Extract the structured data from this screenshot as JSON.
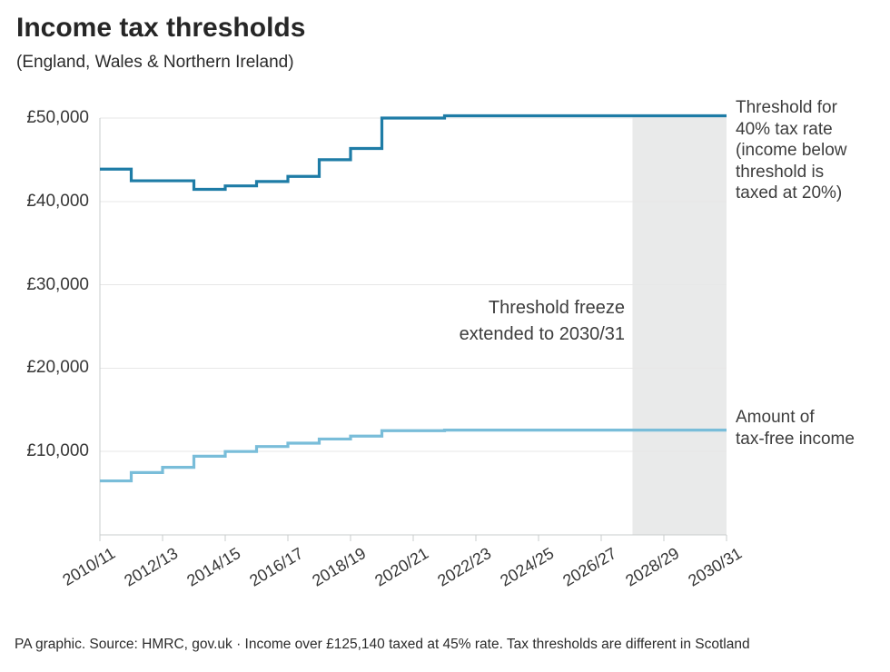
{
  "header": {
    "title": "Income tax thresholds",
    "subtitle": "(England, Wales & Northern Ireland)"
  },
  "right_labels": {
    "threshold_40": "Threshold for\n40% tax rate\n(income below\nthreshold is\ntaxed at 20%)",
    "tax_free": "Amount of\ntax-free income"
  },
  "footer": {
    "text": "PA graphic. Source: HMRC, gov.uk · Income over £125,140 taxed at 45% rate. Tax thresholds are different in Scotland"
  },
  "chart_data": {
    "type": "line",
    "step": true,
    "title": "Income tax thresholds",
    "subtitle": "(England, Wales & Northern Ireland)",
    "grid": "horizontal",
    "legend_position": "right-margin",
    "x_categories": [
      "2010/11",
      "2011/12",
      "2012/13",
      "2013/14",
      "2014/15",
      "2015/16",
      "2016/17",
      "2017/18",
      "2018/19",
      "2019/20",
      "2020/21",
      "2021/22",
      "2022/23",
      "2023/24",
      "2024/25",
      "2025/26",
      "2026/27",
      "2027/28",
      "2028/29",
      "2029/30",
      "2030/31"
    ],
    "x_tick_labels": [
      "2010/11",
      "2012/13",
      "2014/15",
      "2016/17",
      "2018/19",
      "2020/21",
      "2022/23",
      "2024/25",
      "2026/27",
      "2028/29",
      "2030/31"
    ],
    "y_ticks": [
      {
        "label": "£50,000",
        "value": 50000
      },
      {
        "label": "£40,000",
        "value": 40000
      },
      {
        "label": "£30,000",
        "value": 30000
      },
      {
        "label": "£20,000",
        "value": 20000
      },
      {
        "label": "£10,000",
        "value": 10000
      }
    ],
    "ylim": [
      0,
      50270
    ],
    "series": [
      {
        "name": "Threshold for 40% tax rate (income below threshold is taxed at 20%)",
        "color": "#1e7ca6",
        "values": [
          43875,
          42475,
          42475,
          41450,
          41865,
          42385,
          43000,
          45000,
          46350,
          50000,
          50000,
          50270,
          50270,
          50270,
          50270,
          50270,
          50270,
          50270,
          50270,
          50270,
          50270
        ]
      },
      {
        "name": "Amount of tax-free income",
        "color": "#79bdd9",
        "values": [
          6475,
          7475,
          8105,
          9440,
          10000,
          10600,
          11000,
          11500,
          11850,
          12500,
          12500,
          12570,
          12570,
          12570,
          12570,
          12570,
          12570,
          12570,
          12570,
          12570,
          12570
        ]
      }
    ],
    "highlight_band": {
      "start_category": "2027/28",
      "end_category": "2030/31",
      "color": "#e9eaea"
    },
    "annotation": "Threshold freeze\nextended to 2030/31",
    "colors": {
      "gridline": "#e7e7e7",
      "axis": "#c9cccc",
      "band": "#e9eaea"
    }
  }
}
